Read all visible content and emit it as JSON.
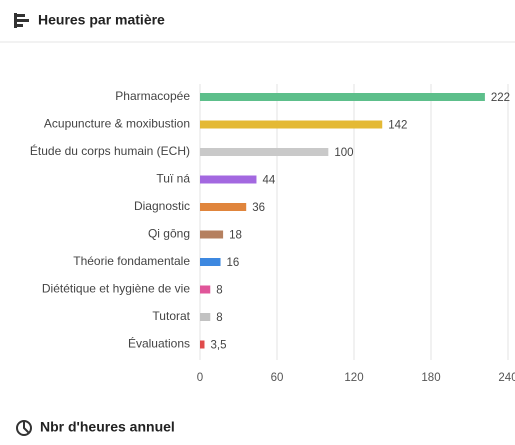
{
  "header": {
    "title": "Heures par matière"
  },
  "footer": {
    "title": "Nbr d'heures annuel"
  },
  "chart_data": {
    "type": "hbar",
    "categories": [
      "Pharmacopée",
      "Acupuncture & moxibustion",
      "Étude du corps humain (ECH)",
      "Tuï ná",
      "Diagnostic",
      "Qi gōng",
      "Théorie fondamentale",
      "Diététique et hygiène de vie",
      "Tutorat",
      "Évaluations"
    ],
    "values": [
      222,
      142,
      100,
      44,
      36,
      18,
      16,
      8,
      8,
      3.5
    ],
    "value_labels": [
      "222",
      "142",
      "100",
      "44",
      "36",
      "18",
      "16",
      "8",
      "8",
      "3,5"
    ],
    "colors": [
      "#5dbf8b",
      "#e4b934",
      "#c9c9c9",
      "#a368e0",
      "#e0853c",
      "#b5805f",
      "#3d88e0",
      "#e0569a",
      "#c2c2c2",
      "#e04b4b"
    ],
    "xlim": [
      0,
      240
    ],
    "xticks": [
      0,
      60,
      120,
      180,
      240
    ],
    "grid": true
  }
}
